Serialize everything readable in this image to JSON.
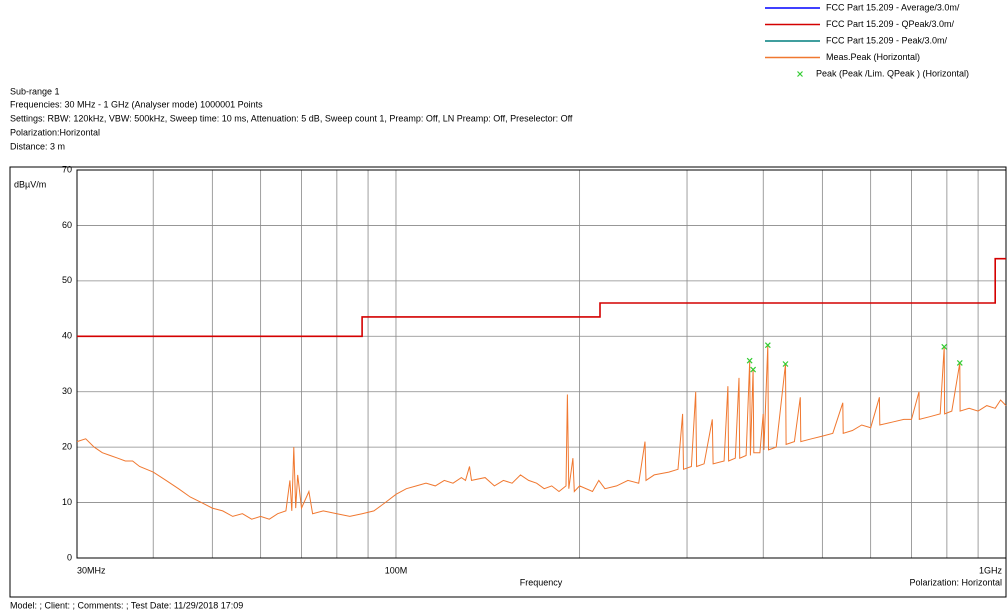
{
  "chart_data": {
    "type": "line",
    "header": [
      "Sub-range 1",
      "Frequencies: 30 MHz - 1 GHz (Analyser mode) 1000001 Points",
      "Settings: RBW: 120kHz, VBW: 500kHz, Sweep time: 10 ms, Attenuation: 5 dB, Sweep count 1, Preamp: Off, LN Preamp: Off, Preselector: Off",
      "Polarization:Horizontal",
      "Distance: 3 m"
    ],
    "y_label": "dBµV/m",
    "x_label": "Frequency",
    "annotation": "Polarization: Horizontal",
    "footer": "Model: ; Client: ; Comments: ; Test Date: 11/29/2018 17:09",
    "log_x": true,
    "grid": true,
    "xlim": [
      30,
      1000
    ],
    "xticks": [
      {
        "value": 30,
        "label": "30MHz"
      },
      {
        "value": 100,
        "label": "100M"
      },
      {
        "value": 1000,
        "label": "1GHz"
      }
    ],
    "xminor": [
      40,
      50,
      60,
      70,
      80,
      90,
      200,
      300,
      400,
      500,
      600,
      700,
      800,
      900
    ],
    "ylim": [
      0,
      70
    ],
    "yticks": [
      0,
      10,
      20,
      30,
      40,
      50,
      60,
      70
    ],
    "legend": "top-right",
    "series": [
      {
        "name": "FCC Part 15.209  - Average/3.0m/",
        "color": "#0000ff",
        "kind": "line",
        "x": [],
        "values": []
      },
      {
        "name": "FCC Part 15.209  - QPeak/3.0m/",
        "color": "#d40000",
        "kind": "line",
        "x": [
          30,
          88,
          88,
          216,
          216,
          960,
          960,
          1000
        ],
        "values": [
          40,
          40,
          43.5,
          43.5,
          46,
          46,
          54,
          54
        ]
      },
      {
        "name": "FCC Part 15.209  - Peak/3.0m/",
        "color": "#007f7f",
        "kind": "line",
        "x": [],
        "values": []
      },
      {
        "name": "Meas.Peak (Horizontal)",
        "color": "#f07830",
        "kind": "line",
        "x": [
          30,
          31,
          32,
          33,
          34,
          35,
          36,
          37,
          38,
          40,
          42,
          44,
          46,
          48,
          50,
          52,
          54,
          56,
          58,
          60,
          62,
          64,
          66,
          67,
          67.5,
          68,
          68.5,
          69,
          70,
          72,
          73,
          76,
          80,
          84,
          88,
          92,
          96,
          100,
          104,
          108,
          112,
          116,
          120,
          124,
          128,
          130,
          132,
          133,
          140,
          145,
          150,
          155,
          160,
          165,
          170,
          175,
          180,
          185,
          190,
          191,
          192,
          195,
          196,
          200,
          210,
          215,
          220,
          230,
          240,
          250,
          256,
          257,
          265,
          280,
          290,
          295,
          296,
          305,
          310,
          311,
          320,
          330,
          331,
          345,
          350,
          351,
          360,
          365,
          366,
          375,
          380,
          381,
          385,
          386,
          395,
          400,
          401,
          407,
          408,
          420,
          435,
          436,
          450,
          460,
          461,
          480,
          500,
          520,
          540,
          541,
          560,
          580,
          600,
          620,
          621,
          650,
          680,
          700,
          720,
          721,
          750,
          780,
          792,
          793,
          815,
          840,
          841,
          870,
          900,
          930,
          960,
          980,
          1000
        ],
        "values": [
          21,
          21.5,
          20,
          19,
          18.5,
          18,
          17.5,
          17.5,
          16.5,
          15.5,
          14,
          12.5,
          11,
          10,
          9,
          8.5,
          7.5,
          8,
          7,
          7.5,
          7,
          8,
          8.5,
          14,
          8.5,
          20,
          9,
          15,
          9,
          12,
          8,
          8.5,
          8,
          7.5,
          8,
          8.5,
          10,
          11.5,
          12.5,
          13,
          13.5,
          13,
          14,
          13.5,
          14.5,
          14,
          16.5,
          14,
          14.5,
          13,
          14,
          13.5,
          15,
          14,
          13.5,
          12.5,
          13,
          12,
          13,
          29.5,
          12.5,
          18,
          12,
          13,
          12,
          14,
          12.5,
          13,
          14,
          13.5,
          21,
          14,
          15,
          15.5,
          16,
          26,
          16,
          16.5,
          30,
          16.5,
          17,
          25,
          17,
          17.5,
          31,
          17.5,
          18,
          32.5,
          18,
          18.5,
          35.6,
          18.5,
          34,
          19,
          19,
          26,
          19.5,
          38.4,
          19.5,
          20,
          35,
          20.5,
          21,
          29,
          21,
          21.5,
          22,
          22.5,
          28,
          22.5,
          23,
          24,
          23.5,
          29,
          24,
          24.5,
          25,
          25,
          30,
          25,
          25.5,
          26,
          38.1,
          26,
          26.5,
          35.2,
          26.5,
          27,
          26.5,
          27.5,
          27,
          28.5,
          27.5
        ]
      },
      {
        "name": "Peak  (Peak /Lim. QPeak ) (Horizontal)",
        "color": "#33cc33",
        "kind": "scatter",
        "x": [
          380,
          385,
          407,
          435,
          792,
          840
        ],
        "values": [
          35.6,
          34,
          38.4,
          35,
          38.1,
          35.2
        ]
      }
    ]
  }
}
